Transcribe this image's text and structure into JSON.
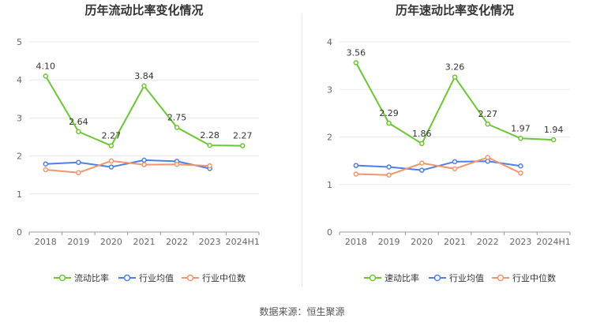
{
  "source": "数据来源：恒生聚源",
  "colors": {
    "main": "#6ac730",
    "avg": "#4c7fe8",
    "median": "#f2956c"
  },
  "legend": {
    "avg": "行业均值",
    "median": "行业中位数"
  },
  "chart_data": [
    {
      "type": "line",
      "title": "历年流动比率变化情况",
      "categories": [
        "2018",
        "2019",
        "2020",
        "2021",
        "2022",
        "2023",
        "2024H1"
      ],
      "ylim": [
        0,
        5
      ],
      "yticks": [
        "0",
        "1",
        "2",
        "3",
        "4",
        "5"
      ],
      "grid": true,
      "legend_position": "bottom",
      "series": [
        {
          "name": "流动比率",
          "values": [
            4.1,
            2.64,
            2.27,
            3.84,
            2.75,
            2.28,
            2.27
          ],
          "labels": [
            "4.10",
            "2.64",
            "2.27",
            "3.84",
            "2.75",
            "2.28",
            "2.27"
          ]
        },
        {
          "name": "行业均值",
          "values": [
            1.79,
            1.83,
            1.71,
            1.89,
            1.86,
            1.67,
            null
          ]
        },
        {
          "name": "行业中位数",
          "values": [
            1.64,
            1.56,
            1.87,
            1.77,
            1.78,
            1.74,
            null
          ]
        }
      ]
    },
    {
      "type": "line",
      "title": "历年速动比率变化情况",
      "categories": [
        "2018",
        "2019",
        "2020",
        "2021",
        "2022",
        "2023",
        "2024H1"
      ],
      "ylim": [
        0,
        4
      ],
      "yticks": [
        "0",
        "1",
        "2",
        "3",
        "4"
      ],
      "grid": true,
      "legend_position": "bottom",
      "series": [
        {
          "name": "速动比率",
          "values": [
            3.56,
            2.29,
            1.86,
            3.26,
            2.27,
            1.97,
            1.94
          ],
          "labels": [
            "3.56",
            "2.29",
            "1.86",
            "3.26",
            "2.27",
            "1.97",
            "1.94"
          ]
        },
        {
          "name": "行业均值",
          "values": [
            1.4,
            1.37,
            1.3,
            1.48,
            1.49,
            1.39,
            null
          ]
        },
        {
          "name": "行业中位数",
          "values": [
            1.22,
            1.2,
            1.45,
            1.33,
            1.57,
            1.24,
            null
          ]
        }
      ]
    }
  ]
}
